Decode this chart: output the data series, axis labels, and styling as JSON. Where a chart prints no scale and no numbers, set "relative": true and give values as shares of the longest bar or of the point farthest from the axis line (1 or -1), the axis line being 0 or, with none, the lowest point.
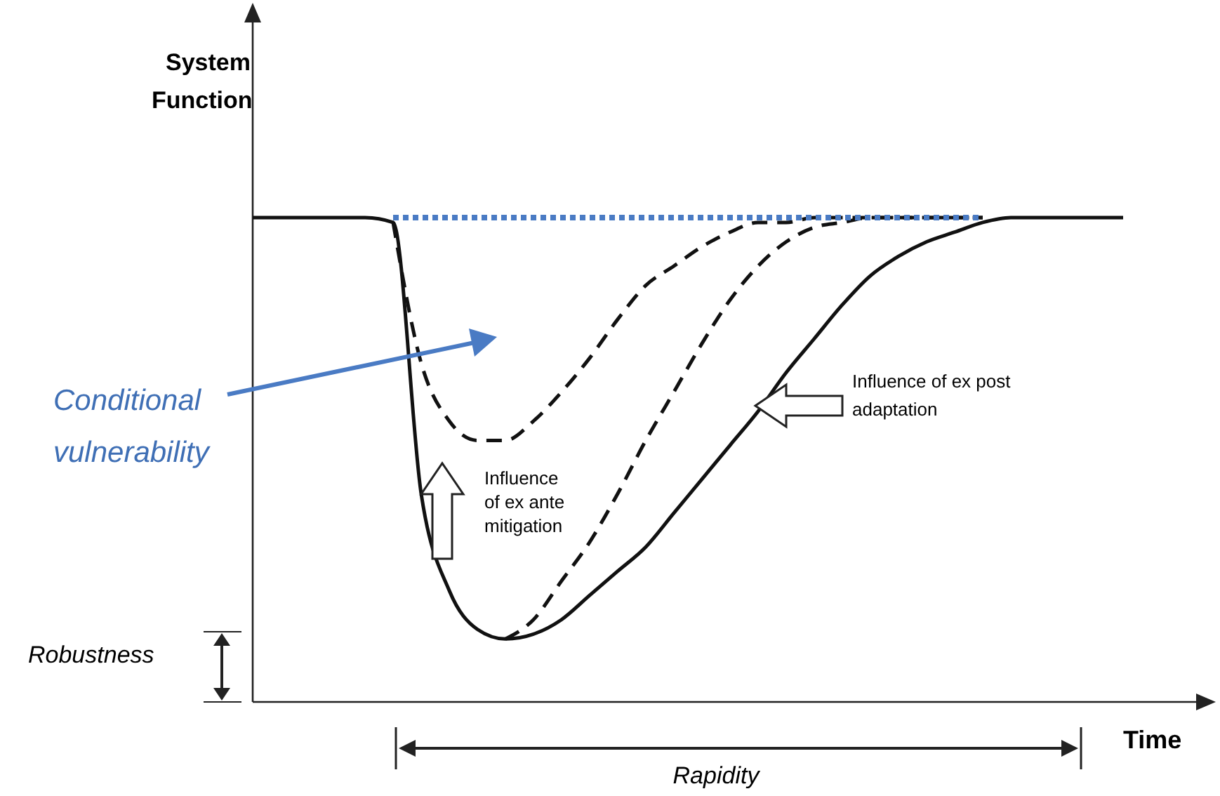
{
  "chart_data": {
    "type": "line",
    "relative": true,
    "xlabel": "Time",
    "ylabel": "System Function",
    "grid": false,
    "marker": "none",
    "categories": [
      null,
      null,
      null,
      null,
      null,
      null,
      null,
      null,
      null,
      null,
      null,
      null,
      null,
      null,
      null,
      null,
      null,
      null,
      null,
      null,
      null,
      null,
      null,
      null,
      null,
      null,
      null,
      null,
      null,
      null,
      null,
      null
    ],
    "series": [
      {
        "color": "#111111",
        "line_style": "solid",
        "values": [
          1,
          1,
          1,
          1,
          1,
          0.99,
          0.43,
          0.23,
          0.15,
          0.13,
          0.14,
          0.17,
          0.22,
          0.27,
          0.32,
          0.39,
          0.46,
          0.53,
          0.6,
          0.68,
          0.75,
          0.82,
          0.88,
          0.92,
          0.95,
          0.97,
          0.99,
          1,
          1,
          1,
          1,
          1
        ]
      },
      {
        "color": "#111111",
        "line_style": "dashed",
        "values": [
          null,
          null,
          null,
          null,
          null,
          null,
          null,
          null,
          null,
          0.13,
          0.17,
          0.25,
          0.33,
          0.43,
          0.54,
          0.64,
          0.74,
          0.83,
          0.9,
          0.95,
          0.98,
          0.99,
          1,
          1,
          1,
          1,
          1,
          null,
          null,
          null,
          null,
          null
        ]
      },
      {
        "color": "#111111",
        "line_style": "dashed",
        "values": [
          null,
          null,
          null,
          null,
          null,
          0.99,
          0.7,
          0.58,
          0.54,
          0.54,
          0.58,
          0.64,
          0.71,
          0.79,
          0.86,
          0.9,
          0.94,
          0.97,
          0.99,
          0.99,
          1,
          1,
          1,
          1,
          1,
          1,
          1,
          null,
          null,
          null,
          null,
          null
        ]
      },
      {
        "color": "#4a7bc4",
        "line_style": "dotted",
        "values": [
          null,
          null,
          null,
          null,
          null,
          1,
          1,
          1,
          1,
          1,
          1,
          1,
          1,
          1,
          1,
          1,
          1,
          1,
          1,
          1,
          1,
          1,
          1,
          1,
          1,
          1,
          1,
          null,
          null,
          null,
          null,
          null
        ]
      }
    ],
    "annotations": [
      "Conditional vulnerability",
      "Influence of ex ante mitigation",
      "Influence of ex post adaptation",
      "Robustness",
      "Rapidity"
    ]
  }
}
